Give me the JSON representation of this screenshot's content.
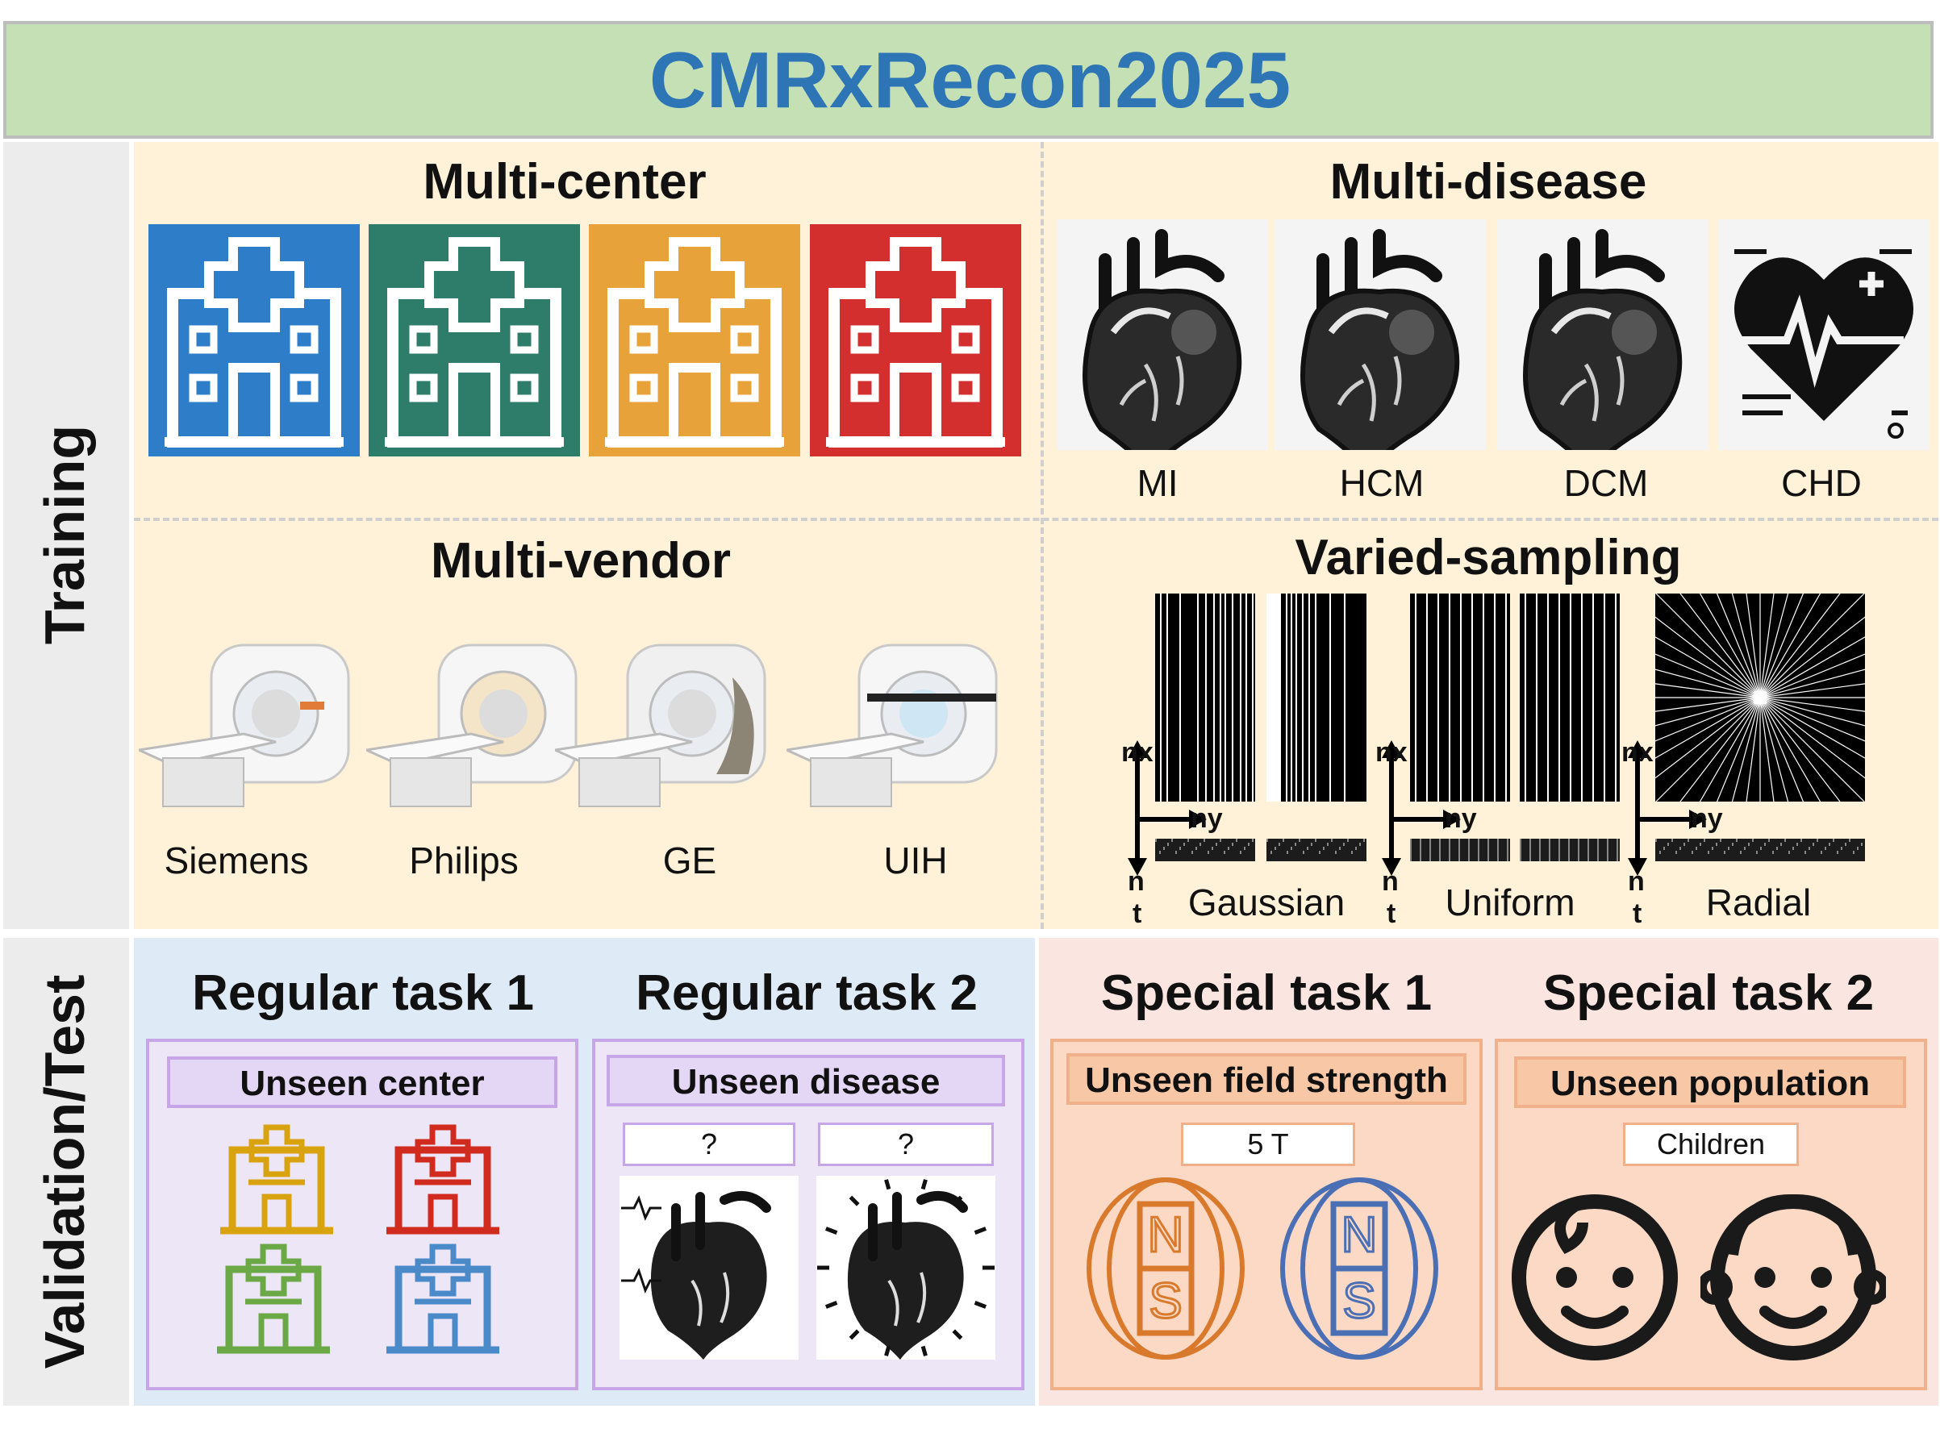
{
  "title": "CMRxRecon2025",
  "side_labels": {
    "training": "Training",
    "validation": "Validation/Test"
  },
  "training": {
    "multi_center": {
      "title": "Multi-center",
      "colors": [
        "#2d7dc9",
        "#2e7d6a",
        "#e8a23a",
        "#d32f2f"
      ]
    },
    "multi_disease": {
      "title": "Multi-disease",
      "items": [
        "MI",
        "HCM",
        "DCM",
        "CHD"
      ]
    },
    "multi_vendor": {
      "title": "Multi-vendor",
      "items": [
        "Siemens",
        "Philips",
        "GE",
        "UIH"
      ]
    },
    "varied_sampling": {
      "title": "Varied-sampling",
      "axes": {
        "nx": "nx",
        "ny": "ny",
        "n": "n",
        "t": "t"
      },
      "items": [
        "Gaussian",
        "Uniform",
        "Radial"
      ]
    }
  },
  "tasks": [
    {
      "title": "Regular task 1",
      "pill": "Unseen center"
    },
    {
      "title": "Regular task 2",
      "pill": "Unseen disease",
      "sub": [
        "?",
        "?"
      ]
    },
    {
      "title": "Special task 1",
      "pill": "Unseen field strength",
      "sub": [
        "5 T"
      ],
      "magnet_letters": [
        "N",
        "S"
      ]
    },
    {
      "title": "Special task 2",
      "pill": "Unseen population",
      "sub": [
        "Children"
      ]
    }
  ],
  "colors": {
    "orange": "#d9792c",
    "blue": "#4a6fb5",
    "purple_border": "#c6a6e6",
    "pill_purple": "#e4d6f5",
    "pill_orange": "#f7c7a6"
  }
}
